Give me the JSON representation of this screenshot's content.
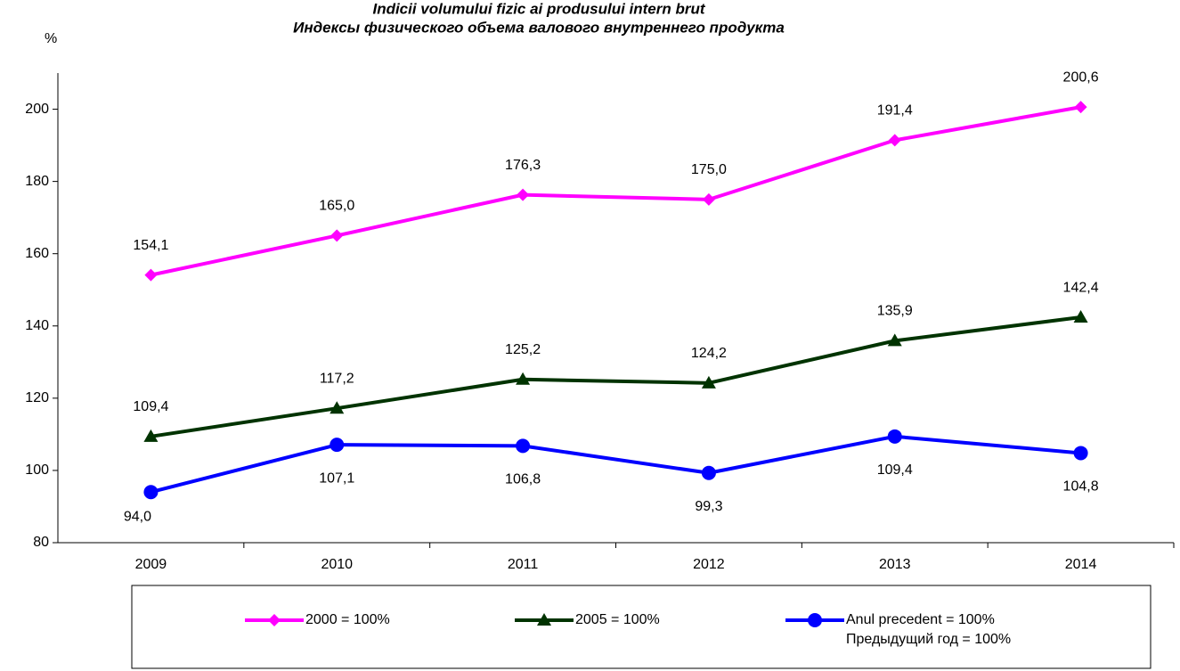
{
  "chart_data": {
    "type": "line",
    "title": "Indicii volumului fizic ai produsului intern brut",
    "subtitle": "Индексы физического объема валового внутреннего продукта",
    "y_label": "%",
    "categories": [
      "2009",
      "2010",
      "2011",
      "2012",
      "2013",
      "2014"
    ],
    "series": [
      {
        "name": "2000 = 100%",
        "color": "#ff00ff",
        "marker": "diamond",
        "values": [
          154.1,
          165.0,
          176.3,
          175.0,
          191.4,
          200.6
        ],
        "value_labels": [
          "154,1",
          "165,0",
          "176,3",
          "175,0",
          "191,4",
          "200,6"
        ]
      },
      {
        "name": "2005 = 100%",
        "color": "#003300",
        "marker": "triangle",
        "values": [
          109.4,
          117.2,
          125.2,
          124.2,
          135.9,
          142.4
        ],
        "value_labels": [
          "109,4",
          "117,2",
          "125,2",
          "124,2",
          "135,9",
          "142,4"
        ]
      },
      {
        "name": "Anul precedent = 100%\nПредыдущий год = 100%",
        "color": "#0000ff",
        "marker": "circle",
        "values": [
          94.0,
          107.1,
          106.8,
          99.3,
          109.4,
          104.8
        ],
        "value_labels": [
          "94,0",
          "107,1",
          "106,8",
          "99,3",
          "109,4",
          "104,8"
        ]
      }
    ],
    "ylim": [
      80,
      210
    ],
    "yticks": [
      80,
      100,
      120,
      140,
      160,
      180,
      200
    ],
    "grid": false
  }
}
